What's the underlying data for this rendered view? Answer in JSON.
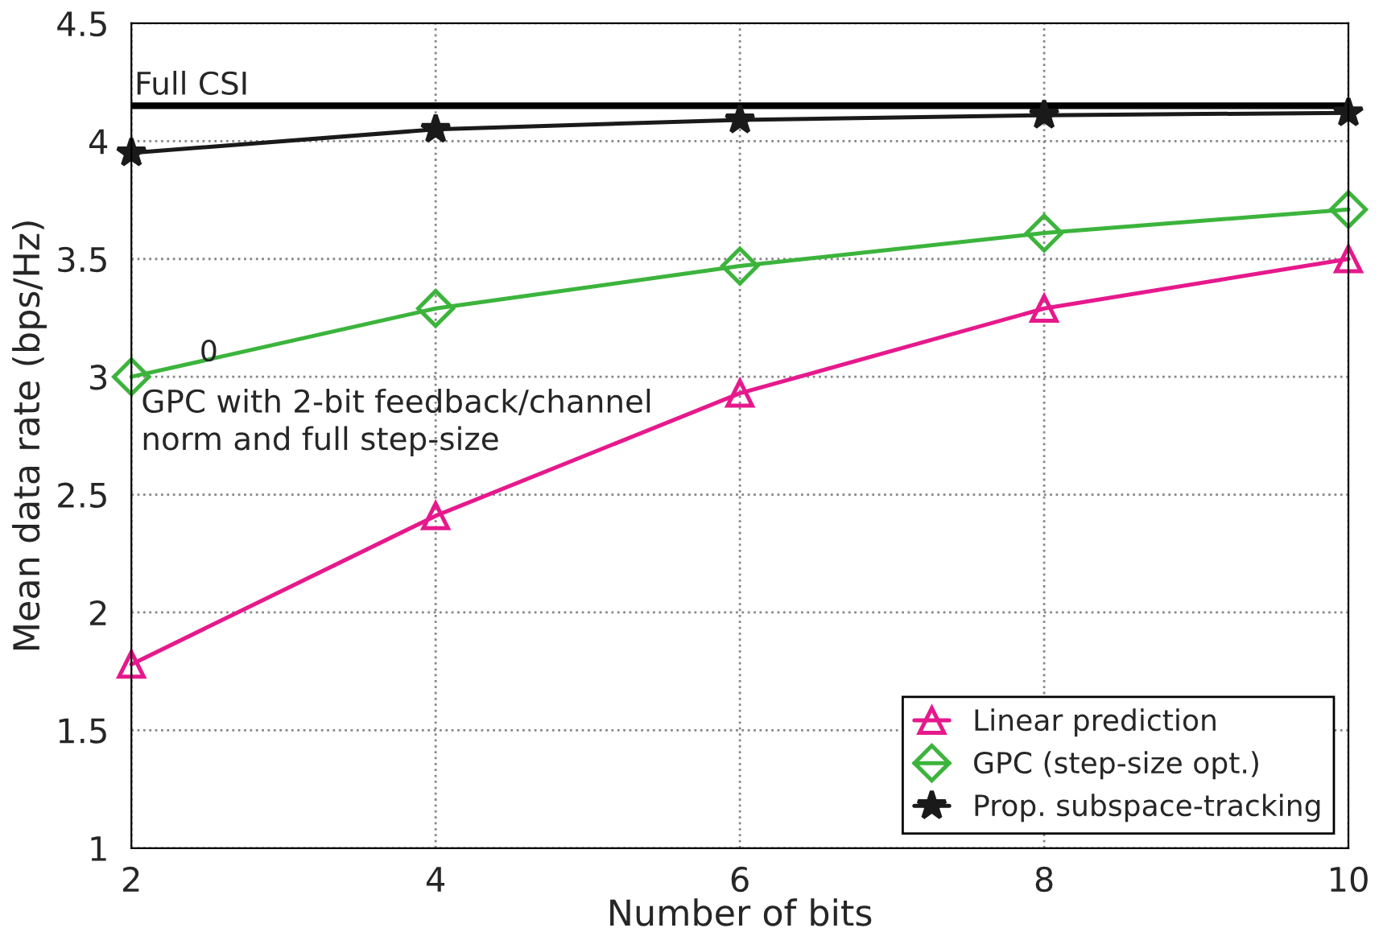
{
  "chart_data": {
    "type": "line",
    "xlabel": "Number of bits",
    "ylabel": "Mean data rate (bps/Hz)",
    "x": [
      2,
      4,
      6,
      8,
      10
    ],
    "series": [
      {
        "name": "Linear prediction",
        "color": "#e6198c",
        "marker": "triangle",
        "values": [
          1.78,
          2.41,
          2.93,
          3.29,
          3.5
        ]
      },
      {
        "name": "GPC (step-size opt.)",
        "color": "#3cb43c",
        "marker": "diamond",
        "values": [
          3.0,
          3.29,
          3.47,
          3.61,
          3.71
        ]
      },
      {
        "name": "Prop. subspace-tracking",
        "color": "#1a1a1a",
        "marker": "star",
        "values": [
          3.95,
          4.05,
          4.09,
          4.11,
          4.12
        ]
      }
    ],
    "ref_lines": [
      {
        "axis": "y",
        "value": 4.15,
        "label": "Full CSI",
        "color": "#000000"
      }
    ],
    "annotations": [
      "0",
      "GPC with 2-bit feedback/channel\nnorm and full step-size"
    ],
    "xlim": [
      2,
      10
    ],
    "xticks": [
      2,
      4,
      6,
      8,
      10
    ],
    "ylim": [
      1,
      4.5
    ],
    "yticks": [
      1,
      1.5,
      2,
      2.5,
      3,
      3.5,
      4,
      4.5
    ],
    "grid": true,
    "legend": "bottom right",
    "line_style": "solid"
  }
}
